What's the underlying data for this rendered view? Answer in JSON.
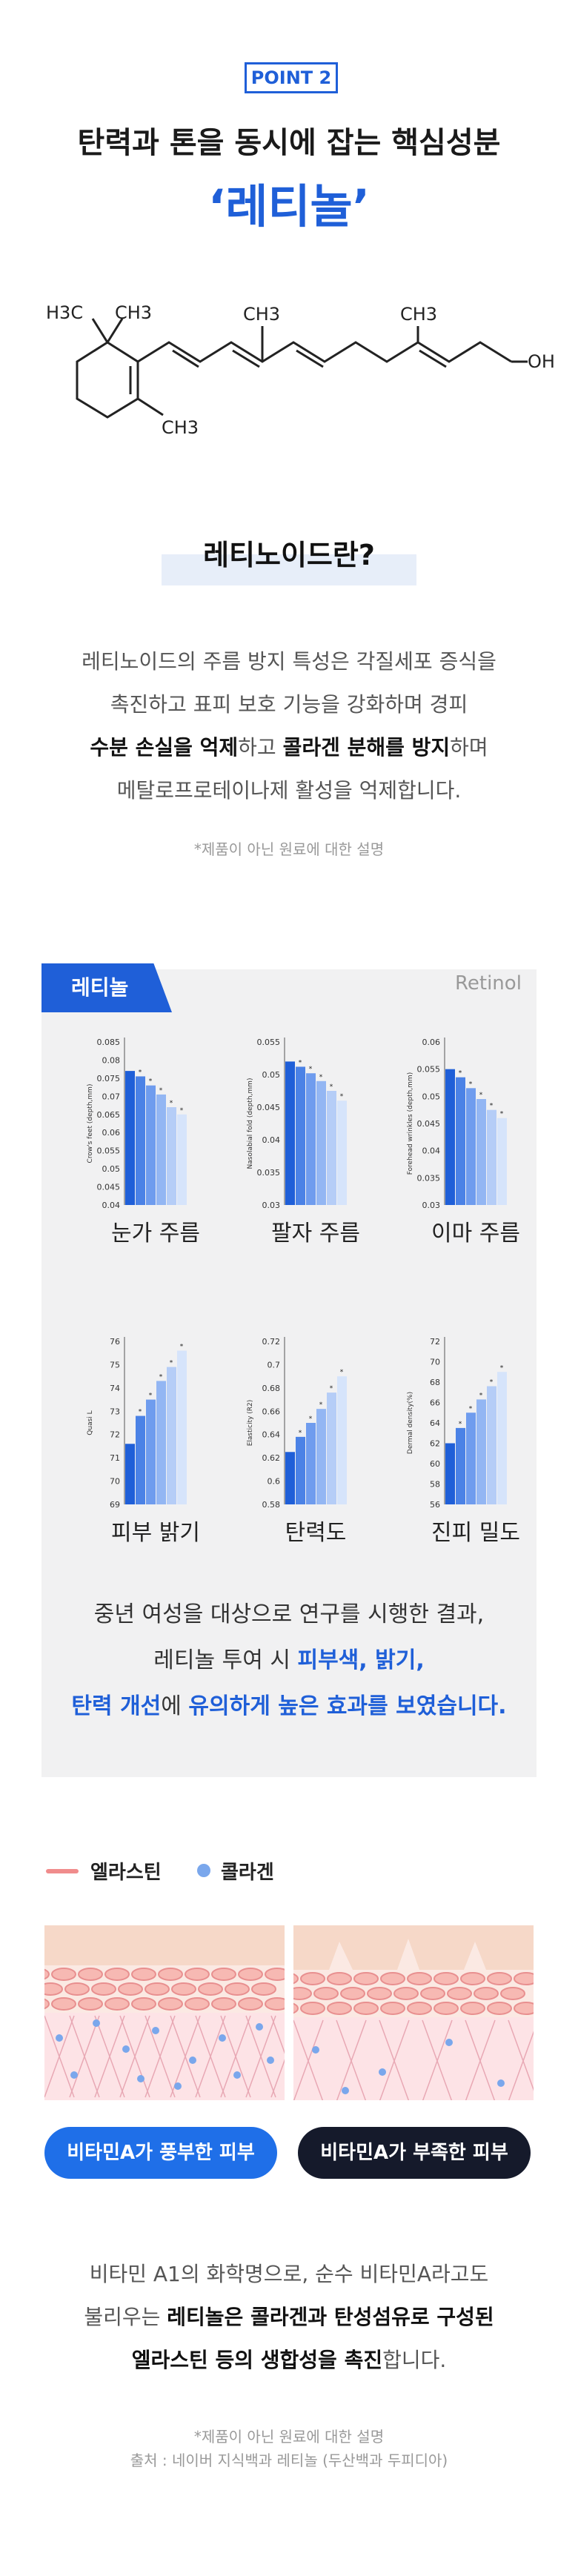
{
  "badge": "POINT 2",
  "heading": {
    "line1": "탄력과 톤을 동시에 잡는 핵심성분",
    "line2": "‘레티놀’"
  },
  "molecule": {
    "labels": {
      "h3c": "H3C",
      "ch3_1": "CH3",
      "ch3_2": "CH3",
      "ch3_3": "CH3",
      "ch3_4": "CH3",
      "oh": "OH"
    }
  },
  "retinoid": {
    "title": "레티노이드란?",
    "p1": "레티노이드의 주름 방지 특성은 각질세포 증식을",
    "p2": "촉진하고 표피 보호 기능을 강화하며 경피",
    "p3a": "수분 손실을 억제",
    "p3b": "하고 ",
    "p3c": "콜라겐 분해를 방지",
    "p3d": "하며",
    "p4": "메탈로프로테이나제 활성을 억제합니다.",
    "note": "*제품이 아닌 원료에 대한 설명"
  },
  "panel": {
    "tab": "레티놀",
    "retinol_en": "Retinol",
    "result": {
      "l1": "중년 여성을 대상으로 연구를 시행한 결과,",
      "l2a": "레티놀 투여 시 ",
      "l2b": "피부색, 밝기,",
      "l3a": "탄력 개선",
      "l3b": "에 ",
      "l3c": "유의하게 높은 효과를 보였습니다."
    }
  },
  "chart_data": [
    {
      "type": "bar",
      "label": "눈가 주름",
      "ylabel": "Crow's feet (depth,mm)",
      "yticks": [
        "0.085",
        "0.08",
        "0.075",
        "0.07",
        "0.065",
        "0.06",
        "0.055",
        "0.05",
        "0.045",
        "0.04"
      ],
      "ylim": [
        0.04,
        0.085
      ],
      "values": [
        0.077,
        0.0755,
        0.073,
        0.0705,
        0.067,
        0.065
      ]
    },
    {
      "type": "bar",
      "label": "팔자 주름",
      "ylabel": "Nasolabial fold (depth,mm)",
      "yticks": [
        "0.055",
        "0.05",
        "0.045",
        "0.04",
        "0.035",
        "0.03"
      ],
      "ylim": [
        0.03,
        0.055
      ],
      "values": [
        0.052,
        0.0512,
        0.0502,
        0.049,
        0.0475,
        0.046
      ]
    },
    {
      "type": "bar",
      "label": "이마 주름",
      "ylabel": "Forehead wrinkles (depth,mm)",
      "yticks": [
        "0.06",
        "0.055",
        "0.05",
        "0.045",
        "0.04",
        "0.035",
        "0.03"
      ],
      "ylim": [
        0.03,
        0.06
      ],
      "values": [
        0.055,
        0.0535,
        0.0515,
        0.0495,
        0.0475,
        0.046
      ]
    },
    {
      "type": "bar",
      "label": "피부 밝기",
      "ylabel": "Quasi L",
      "yticks": [
        "76",
        "75",
        "74",
        "73",
        "72",
        "71",
        "70",
        "69"
      ],
      "ylim": [
        69,
        76
      ],
      "values": [
        71.6,
        72.8,
        73.5,
        74.3,
        74.9,
        75.6
      ]
    },
    {
      "type": "bar",
      "label": "탄력도",
      "ylabel": "Elasticity (R2)",
      "yticks": [
        "0.72",
        "0.7",
        "0.68",
        "0.66",
        "0.64",
        "0.62",
        "0.6",
        "0.58"
      ],
      "ylim": [
        0.58,
        0.72
      ],
      "values": [
        0.625,
        0.638,
        0.65,
        0.662,
        0.676,
        0.69
      ]
    },
    {
      "type": "bar",
      "label": "진피 밀도",
      "ylabel": "Dermal density(%)",
      "yticks": [
        "72",
        "70",
        "68",
        "66",
        "64",
        "62",
        "60",
        "58",
        "56"
      ],
      "ylim": [
        56,
        72
      ],
      "values": [
        62,
        63.5,
        65,
        66.3,
        67.6,
        69
      ]
    }
  ],
  "skin": {
    "legend_elastin": "엘라스틴",
    "legend_collagen": "콜라겐",
    "pill_rich": "비타민A가 풍부한 피부",
    "pill_lack": "비타민A가 부족한 피부",
    "colors": {
      "elastin": "#f08c8c",
      "collagen": "#7aa7ec",
      "rich": "#1f6fe8",
      "lack": "#151a2b"
    }
  },
  "bottom": {
    "l1": "비타민 A1의 화학명으로, 순수 비타민A라고도",
    "l2a": "불리우는 ",
    "l2b": "레티놀은 콜라겐과 탄성섬유로 구성된",
    "l3a": "엘라스틴 등의 생합성을 촉진",
    "l3b": "합니다.",
    "note1": "*제품이 아닌 원료에 대한 설명",
    "note2": "출처 : 네이버 지식백과 레티놀 (두산백과 두피디아)"
  },
  "colors": {
    "accent": "#1f5fd8",
    "panel_bg": "#f1f1f2"
  }
}
